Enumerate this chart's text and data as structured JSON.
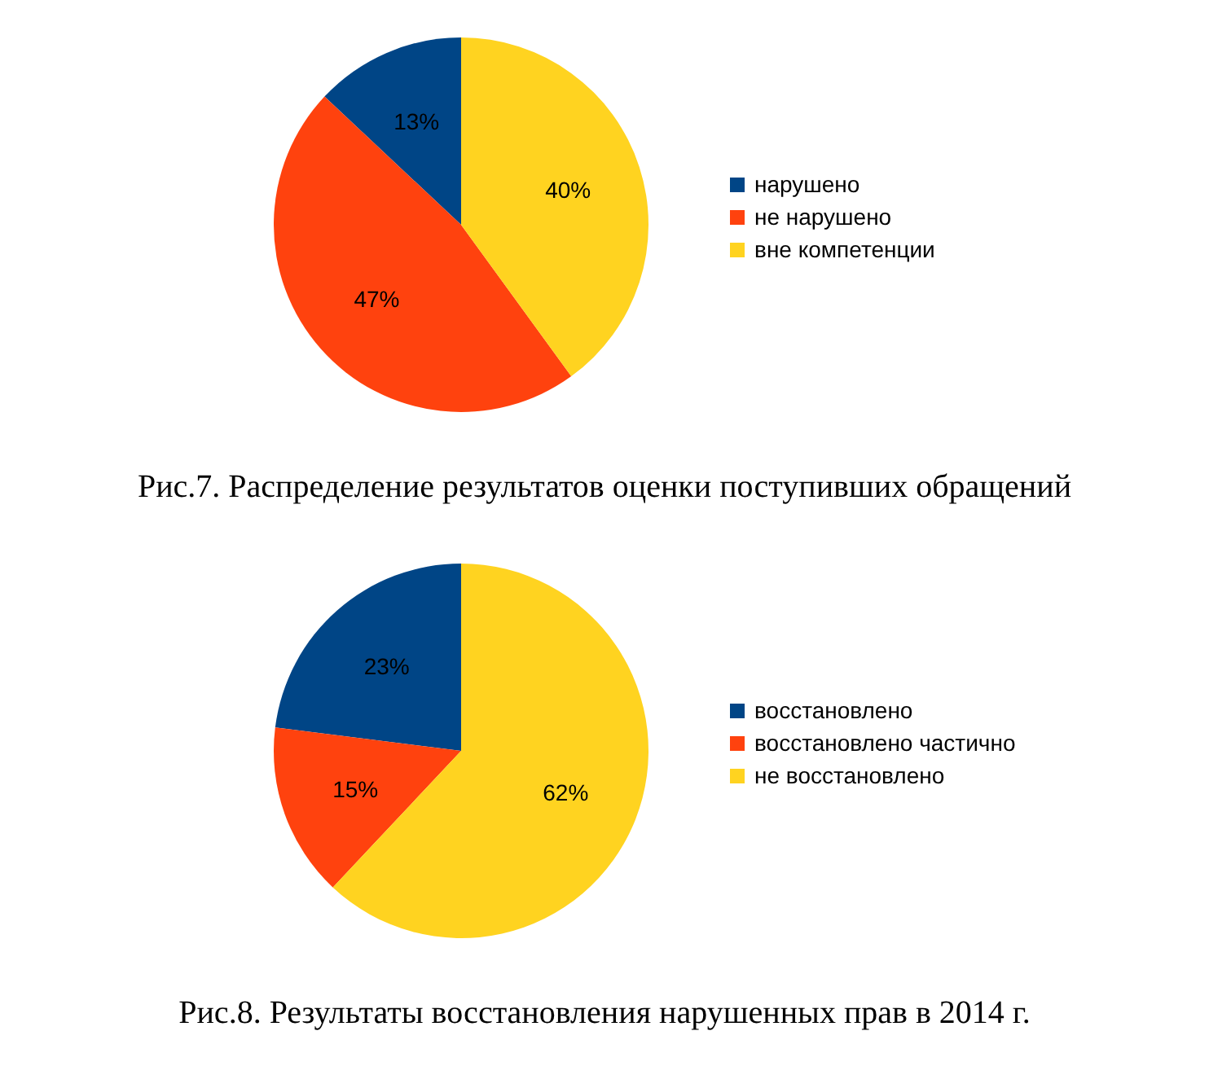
{
  "chart_data": [
    {
      "type": "pie",
      "title": "Рис.7. Распределение результатов оценки поступивших обращений",
      "categories": [
        "нарушено",
        "не нарушено",
        "вне компетенции"
      ],
      "values": [
        13,
        47,
        40
      ],
      "value_labels": [
        "13%",
        "47%",
        "40%"
      ],
      "colors": [
        "#004586",
        "#ff420e",
        "#ffd320"
      ],
      "legend": "right"
    },
    {
      "type": "pie",
      "title": "Рис.8. Результаты восстановления нарушенных прав в 2014 г.",
      "categories": [
        "восстановлено",
        "восстановлено частично",
        "не восстановлено"
      ],
      "values": [
        23,
        15,
        62
      ],
      "value_labels": [
        "23%",
        "15%",
        "62%"
      ],
      "colors": [
        "#004586",
        "#ff420e",
        "#ffd320"
      ],
      "legend": "right"
    }
  ]
}
